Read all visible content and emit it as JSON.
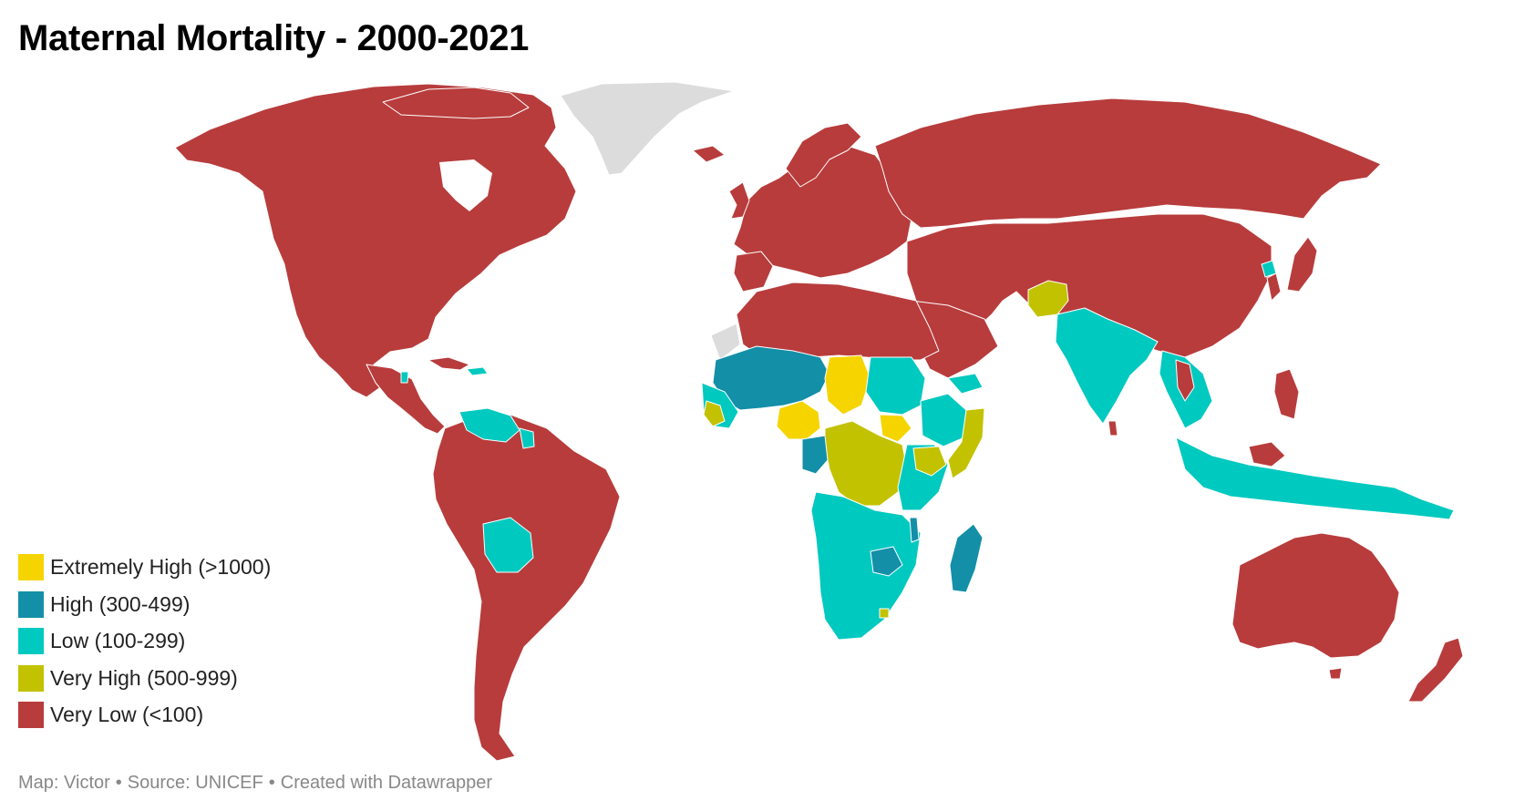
{
  "title": "Maternal Mortality - 2000-2021",
  "legend": [
    {
      "label": "Extremely High (>1000)",
      "color": "#f5d400"
    },
    {
      "label": "High (300-499)",
      "color": "#138fa8"
    },
    {
      "label": "Low (100-299)",
      "color": "#00c9c0"
    },
    {
      "label": "Very High (500-999)",
      "color": "#c2c200"
    },
    {
      "label": "Very Low (<100)",
      "color": "#b83c3c"
    }
  ],
  "no_data_color": "#dcdcdc",
  "footer": {
    "map_credit": "Map: Victor",
    "source": "Source: UNICEF",
    "tool": "Created with Datawrapper",
    "separator": "•"
  }
}
